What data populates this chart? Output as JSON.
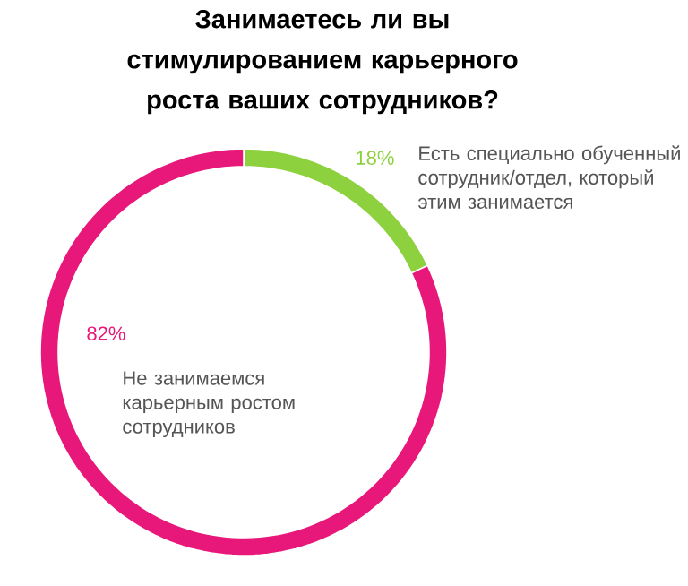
{
  "chart_data": {
    "type": "donut",
    "title": "Занимаетесь ли вы стимулированием карьерного роста ваших сотрудников?",
    "categories": [
      "Есть специально обученный сотрудник/отдел, который этим занимается",
      "Не занимаемся карьерным ростом сотрудников"
    ],
    "values": [
      18,
      82
    ],
    "colors": [
      "#8dd13f",
      "#e8187a"
    ],
    "value_labels": [
      "18%",
      "82%"
    ]
  }
}
